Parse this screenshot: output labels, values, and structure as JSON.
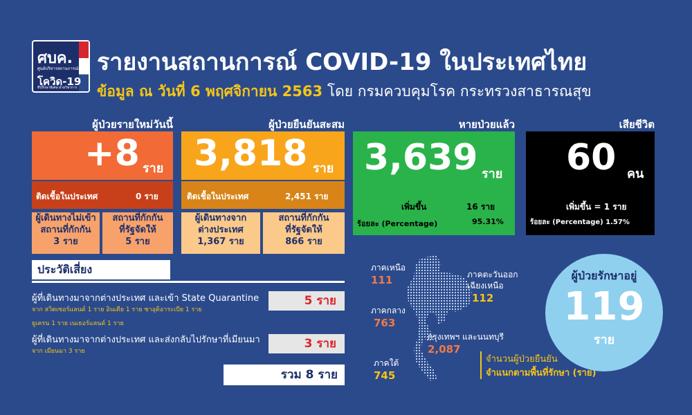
{
  "logo": {
    "abbr": "ศบค.",
    "org_line": "ศูนย์บริหารสถานการณ์",
    "covid": "โควิด-19",
    "tagline": "ที่ปรึกษาพิเศษ ฝ่ายวิชาการ"
  },
  "header": {
    "title": "รายงานสถานการณ์ COVID-19 ในประเทศไทย",
    "date_text": "ข้อมูล ณ วันที่ 6 พฤศจิกายน 2563",
    "source_text": "โดย กรมควบคุมโรค กระทรวงสาธารณสุข"
  },
  "new_cases": {
    "label": "ผู้ป่วยรายใหม่วันนี้",
    "value": "+8",
    "unit": "ราย",
    "domestic_label": "ติดเชื้อในประเทศ",
    "domestic_value": "0 ราย",
    "tag1_line1": "ผู้เดินทางไม่เข้า",
    "tag1_line2": "สถานที่กักกัน",
    "tag1_value": "3 ราย",
    "tag2_line1": "สถานที่กักกัน",
    "tag2_line2": "ที่รัฐจัดให้",
    "tag2_value": "5 ราย"
  },
  "cumulative": {
    "label": "ผู้ป่วยยืนยันสะสม",
    "value": "3,818",
    "unit": "ราย",
    "domestic_label": "ติดเชื้อในประเทศ",
    "domestic_value": "2,451 ราย",
    "tag1_line1": "ผู้เดินทางจาก",
    "tag1_line2": "ต่างประเทศ",
    "tag1_value": "1,367 ราย",
    "tag2_line1": "สถานที่กักกัน",
    "tag2_line2": "ที่รัฐจัดให้",
    "tag2_value": "866 ราย"
  },
  "recovered": {
    "label": "หายป่วยแล้ว",
    "value": "3,639",
    "unit": "ราย",
    "increase_label": "เพิ่มขึ้น",
    "increase_value": "16 ราย",
    "pct_label": "ร้อยละ (Percentage)",
    "pct_value": "95.31%"
  },
  "deaths": {
    "label": "เสียชีวิต",
    "value": "60",
    "unit": "คน",
    "increase_text": "เพิ่มขึ้น = 1 ราย",
    "pct_text": "ร้อยละ (Percentage) 1.57%"
  },
  "risk": {
    "heading": "ประวัติเสี่ยง",
    "item1_text": "ผู้ที่เดินทางมาจากต่างประเทศ และเข้า State Quarantine",
    "item1_detail1": "จาก สวิตเซอร์แลนด์ 1 ราย อินเดีย 1 ราย ซาอุดิอาระเบีย 1 ราย",
    "item1_detail2": "ยูเครน 1 ราย เนเธอร์แลนด์ 1 ราย",
    "item1_value": "5 ราย",
    "item2_text": "ผู้ที่เดินทางมาจากต่างประเทศ และส่งกลับไปรักษาที่เมียนมา",
    "item2_detail": "จาก เมียนมา 3 ราย",
    "item2_value": "3 ราย",
    "total": "รวม 8 ราย"
  },
  "regions": {
    "north_label": "ภาคเหนือ",
    "north_value": "111",
    "northeast_label1": "ภาคตะวันออก",
    "northeast_label2": "เฉียงเหนือ",
    "northeast_value": "112",
    "central_label": "ภาคกลาง",
    "central_value": "763",
    "bangkok_label": "กรุงเทพฯ และนนทบุรี",
    "bangkok_value": "2,087",
    "south_label": "ภาคใต้",
    "south_value": "745",
    "caption1": "จำนวนผู้ป่วยยืนยัน",
    "caption2": "จำแนกตามพื้นที่รักษา",
    "caption_unit": "(ราย)"
  },
  "treating": {
    "label": "ผู้ป่วยรักษาอยู่",
    "value": "119",
    "unit": "ราย"
  },
  "colors": {
    "background": "#2b4a8c",
    "new_cases": "#f26a35",
    "cumulative": "#f8a51b",
    "recovered": "#2ab34a",
    "deaths": "#000000",
    "treating": "#8fd0ef"
  }
}
